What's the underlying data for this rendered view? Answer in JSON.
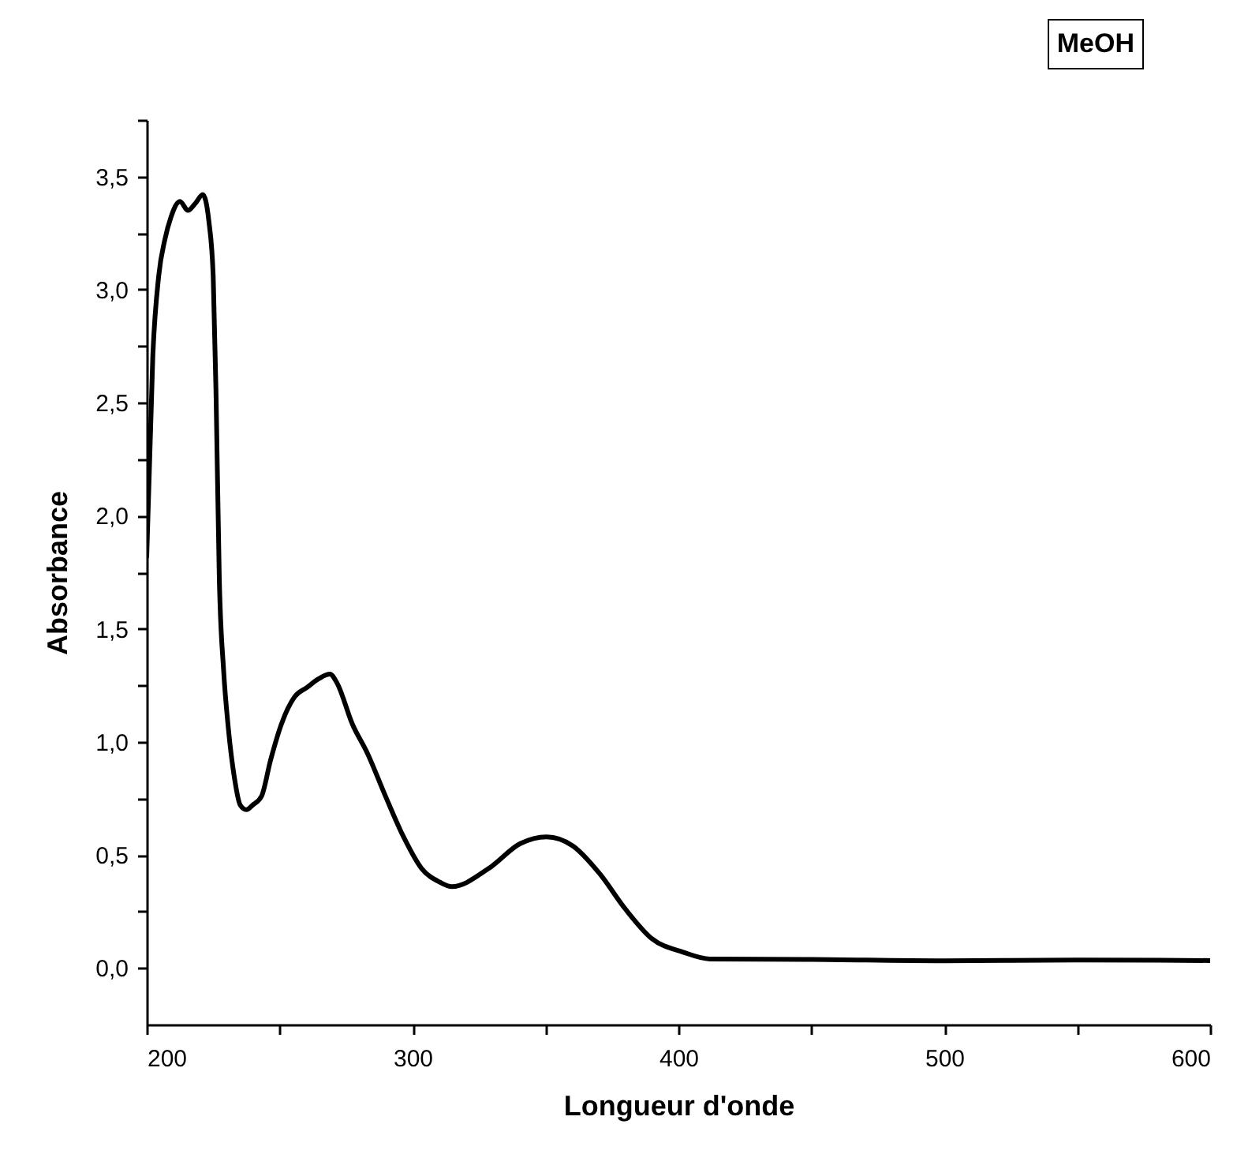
{
  "chart_data": {
    "type": "line",
    "xlabel": "Longueur d'onde",
    "ylabel": "Absorbance",
    "annotations": [
      "MeOH"
    ],
    "x": [
      200,
      202.3,
      204.5,
      206.8,
      209.1,
      212.5,
      215.5,
      218.2,
      221.1,
      223.4,
      225,
      226.1,
      227.3,
      228.9,
      230.7,
      233,
      235.2,
      237.5,
      239.8,
      243.2,
      246.6,
      250.7,
      255.7,
      260.2,
      264.8,
      268.9,
      271.6,
      277.3,
      283,
      289.8,
      296.6,
      303.4,
      310.2,
      314.8,
      328.6,
      340.5,
      350.4,
      360.3,
      370.2,
      380.1,
      390,
      401.8,
      411.8,
      450,
      500,
      550,
      600
    ],
    "series": [
      {
        "color": "#000000",
        "values": [
          1.82,
          2.71,
          3.06,
          3.22,
          3.32,
          3.39,
          3.35,
          3.38,
          3.42,
          3.3,
          3.06,
          2.52,
          1.72,
          1.32,
          1.06,
          0.84,
          0.72,
          0.7,
          0.72,
          0.76,
          0.92,
          1.08,
          1.2,
          1.24,
          1.28,
          1.3,
          1.26,
          1.08,
          0.95,
          0.76,
          0.58,
          0.44,
          0.38,
          0.36,
          0.44,
          0.55,
          0.58,
          0.54,
          0.42,
          0.26,
          0.13,
          0.07,
          0.04,
          0.038,
          0.032,
          0.035,
          0.033
        ]
      }
    ],
    "xlim": [
      200,
      600
    ],
    "xticks": [
      200,
      {
        "value": 250,
        "label": null
      },
      300,
      {
        "value": 350,
        "label": null
      },
      400,
      {
        "value": 450,
        "label": null
      },
      500,
      {
        "value": 550,
        "label": null
      },
      600
    ],
    "ylim": [
      -0.25,
      3.75
    ],
    "yticks": [
      {
        "value": 0,
        "label": "0,0"
      },
      {
        "value": 0.25,
        "label": null
      },
      {
        "value": 0.5,
        "label": "0,5"
      },
      {
        "value": 0.75,
        "label": null
      },
      {
        "value": 1,
        "label": "1,0"
      },
      {
        "value": 1.25,
        "label": null
      },
      {
        "value": 1.5,
        "label": "1,5"
      },
      {
        "value": 1.75,
        "label": null
      },
      {
        "value": 2,
        "label": "2,0"
      },
      {
        "value": 2.25,
        "label": null
      },
      {
        "value": 2.5,
        "label": "2,5"
      },
      {
        "value": 2.75,
        "label": null
      },
      {
        "value": 3,
        "label": "3,0"
      },
      {
        "value": 3.25,
        "label": null
      },
      {
        "value": 3.5,
        "label": "3,5"
      },
      {
        "value": 3.75,
        "label": null
      }
    ],
    "grid": false,
    "marker": "none",
    "line_style": "solid"
  }
}
